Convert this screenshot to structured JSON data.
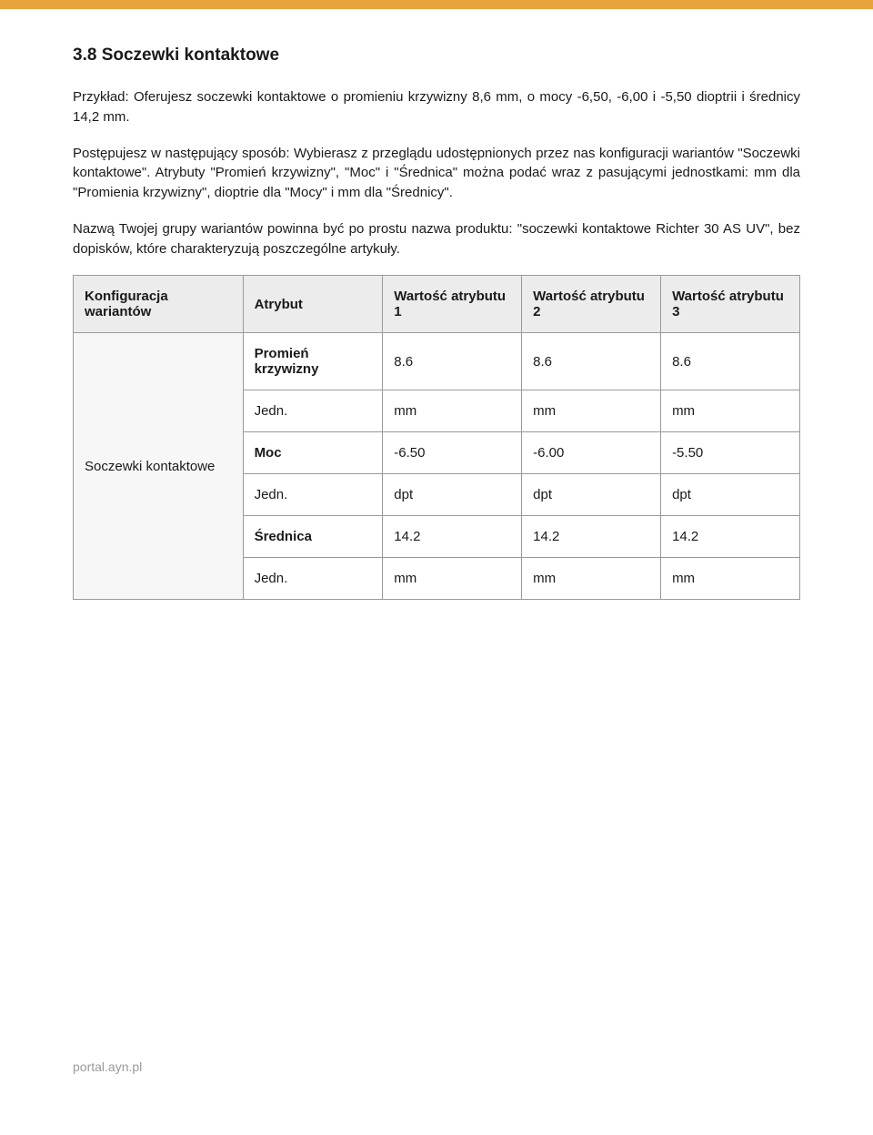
{
  "topbar_color": "#e8a33d",
  "section": {
    "number": "3.8",
    "title": "Soczewki kontaktowe",
    "heading_full": "3.8  Soczewki kontaktowe"
  },
  "paragraphs": {
    "p1": "Przykład: Oferujesz soczewki kontaktowe o promieniu krzywizny 8,6 mm, o mocy -6,50, -6,00 i -5,50 dioptrii i średnicy 14,2 mm.",
    "p2": "Postępujesz w następujący sposób: Wybierasz z przeglądu udostępnionych przez nas konfiguracji wariantów \"Soczewki kontaktowe\". Atrybuty \"Promień krzywizny\", \"Moc\" i \"Średnica\" można podać wraz z pasującymi jednostkami: mm dla \"Promienia krzywizny\", dioptrie dla \"Mocy\" i mm dla \"Średnicy\".",
    "p3": "Nazwą Twojej grupy wariantów powinna być po prostu nazwa produktu: \"soczewki kontaktowe Richter 30 AS UV\", bez dopisków, które charakteryzują poszczególne artykuły."
  },
  "table": {
    "headers": {
      "config": "Konfiguracja wariantów",
      "attribute": "Atrybut",
      "val1": "Wartość atrybutu 1",
      "val2": "Wartość atrybutu 2",
      "val3": "Wartość atrybutu 3"
    },
    "config_name": "Soczewki kontaktowe",
    "rows": [
      {
        "label": "Promień krzywizny",
        "bold": true,
        "v1": "8.6",
        "v2": "8.6",
        "v3": "8.6"
      },
      {
        "label": "Jedn.",
        "bold": false,
        "v1": "mm",
        "v2": "mm",
        "v3": "mm"
      },
      {
        "label": "Moc",
        "bold": true,
        "v1": "-6.50",
        "v2": "-6.00",
        "v3": "-5.50"
      },
      {
        "label": "Jedn.",
        "bold": false,
        "v1": "dpt",
        "v2": "dpt",
        "v3": "dpt"
      },
      {
        "label": "Średnica",
        "bold": true,
        "v1": "14.2",
        "v2": "14.2",
        "v3": "14.2"
      },
      {
        "label": "Jedn.",
        "bold": false,
        "v1": "mm",
        "v2": "mm",
        "v3": "mm"
      }
    ]
  },
  "footer": "portal.ayn.pl"
}
